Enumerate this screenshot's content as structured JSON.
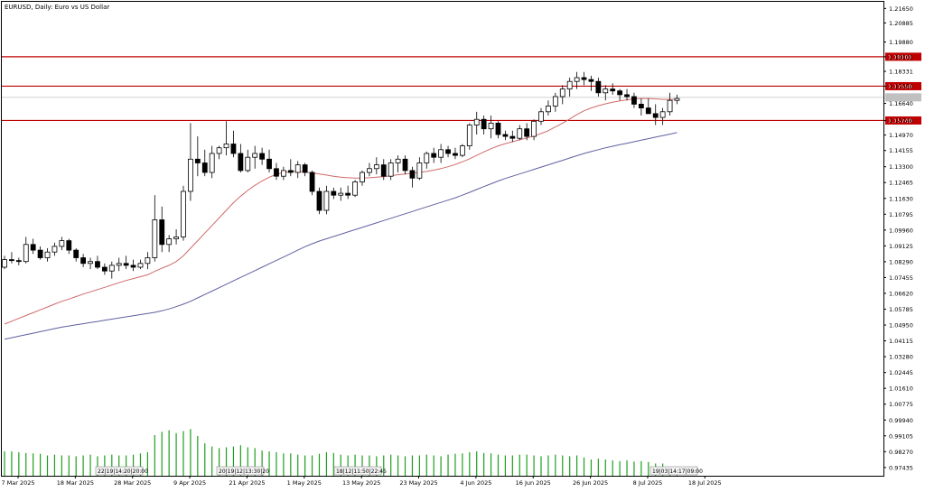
{
  "chart_data": {
    "type": "candlestick",
    "title": "EURUSD, Daily:  Euro vs US Dollar",
    "y_ticks": [
      "1.21650",
      "1.20885",
      "1.19880",
      "1.19101",
      "1.18331",
      "1.17550",
      "1.16640",
      "1.15740",
      "1.14970",
      "1.14155",
      "1.13300",
      "1.12465",
      "1.11630",
      "1.10795",
      "1.09960",
      "1.09125",
      "1.08290",
      "1.07455",
      "1.06620",
      "1.05785",
      "1.04950",
      "1.04115",
      "1.03280",
      "1.02445",
      "1.01610",
      "1.00775",
      "0.99940",
      "0.99105",
      "0.98270",
      "0.97435"
    ],
    "x_ticks": [
      "7 Mar 2025",
      "18 Mar 2025",
      "28 Mar 2025",
      "9 Apr 2025",
      "21 Apr 2025",
      "1 May 2025",
      "13 May 2025",
      "23 May 2025",
      "4 Jun 2025",
      "16 Jun 2025",
      "26 Jun 2025",
      "8 Jul 2025",
      "18 Jul 2025"
    ],
    "ylim": [
      0.97,
      1.22
    ],
    "horizontal_levels": [
      {
        "value": 1.19101,
        "label": "1.19101",
        "color": "#c00000"
      },
      {
        "value": 1.1755,
        "label": "1.17550",
        "color": "#c00000"
      },
      {
        "value": 1.1574,
        "label": "1.15740",
        "color": "#c00000"
      }
    ],
    "current_price": {
      "value": 1.1696,
      "color": "#c0c0c0"
    },
    "date_stamps": [
      "22|19|14:20|20:00",
      "20|19|12|13:30|20",
      "18|12|11:50|22:45",
      "19|03|14:17|09:00"
    ],
    "candles": [
      [
        1.08,
        1.086,
        1.079,
        1.084
      ],
      [
        1.084,
        1.088,
        1.082,
        1.0835
      ],
      [
        1.0835,
        1.085,
        1.081,
        1.083
      ],
      [
        1.083,
        1.096,
        1.082,
        1.092
      ],
      [
        1.092,
        1.095,
        1.087,
        1.089
      ],
      [
        1.089,
        1.091,
        1.084,
        1.085
      ],
      [
        1.085,
        1.09,
        1.083,
        1.088
      ],
      [
        1.088,
        1.093,
        1.086,
        1.091
      ],
      [
        1.091,
        1.096,
        1.089,
        1.094
      ],
      [
        1.094,
        1.095,
        1.087,
        1.089
      ],
      [
        1.089,
        1.09,
        1.083,
        1.085
      ],
      [
        1.085,
        1.087,
        1.08,
        1.082
      ],
      [
        1.082,
        1.085,
        1.079,
        1.083
      ],
      [
        1.083,
        1.086,
        1.079,
        1.08
      ],
      [
        1.08,
        1.082,
        1.076,
        1.078
      ],
      [
        1.078,
        1.083,
        1.074,
        1.081
      ],
      [
        1.081,
        1.085,
        1.078,
        1.082
      ],
      [
        1.082,
        1.086,
        1.079,
        1.081
      ],
      [
        1.081,
        1.084,
        1.078,
        1.08
      ],
      [
        1.08,
        1.084,
        1.079,
        1.082
      ],
      [
        1.082,
        1.088,
        1.079,
        1.085
      ],
      [
        1.085,
        1.118,
        1.083,
        1.105
      ],
      [
        1.105,
        1.112,
        1.088,
        1.092
      ],
      [
        1.092,
        1.097,
        1.088,
        1.095
      ],
      [
        1.095,
        1.1,
        1.092,
        1.096
      ],
      [
        1.096,
        1.123,
        1.094,
        1.12
      ],
      [
        1.12,
        1.156,
        1.115,
        1.137
      ],
      [
        1.137,
        1.149,
        1.128,
        1.135
      ],
      [
        1.135,
        1.142,
        1.128,
        1.13
      ],
      [
        1.13,
        1.144,
        1.127,
        1.14
      ],
      [
        1.14,
        1.144,
        1.137,
        1.143
      ],
      [
        1.143,
        1.157,
        1.139,
        1.145
      ],
      [
        1.145,
        1.152,
        1.138,
        1.14
      ],
      [
        1.14,
        1.145,
        1.13,
        1.131
      ],
      [
        1.131,
        1.142,
        1.13,
        1.138
      ],
      [
        1.138,
        1.144,
        1.132,
        1.14
      ],
      [
        1.14,
        1.143,
        1.134,
        1.137
      ],
      [
        1.137,
        1.142,
        1.13,
        1.132
      ],
      [
        1.132,
        1.135,
        1.126,
        1.128
      ],
      [
        1.128,
        1.133,
        1.126,
        1.131
      ],
      [
        1.131,
        1.137,
        1.128,
        1.13
      ],
      [
        1.13,
        1.136,
        1.127,
        1.134
      ],
      [
        1.134,
        1.135,
        1.128,
        1.13
      ],
      [
        1.13,
        1.131,
        1.118,
        1.12
      ],
      [
        1.12,
        1.122,
        1.108,
        1.11
      ],
      [
        1.11,
        1.123,
        1.108,
        1.12
      ],
      [
        1.12,
        1.122,
        1.116,
        1.118
      ],
      [
        1.118,
        1.122,
        1.115,
        1.119
      ],
      [
        1.119,
        1.123,
        1.116,
        1.118
      ],
      [
        1.118,
        1.126,
        1.117,
        1.125
      ],
      [
        1.125,
        1.131,
        1.123,
        1.13
      ],
      [
        1.13,
        1.135,
        1.128,
        1.132
      ],
      [
        1.132,
        1.138,
        1.129,
        1.134
      ],
      [
        1.134,
        1.137,
        1.126,
        1.128
      ],
      [
        1.128,
        1.137,
        1.126,
        1.135
      ],
      [
        1.135,
        1.139,
        1.13,
        1.137
      ],
      [
        1.137,
        1.139,
        1.129,
        1.131
      ],
      [
        1.131,
        1.133,
        1.122,
        1.127
      ],
      [
        1.127,
        1.138,
        1.126,
        1.135
      ],
      [
        1.135,
        1.141,
        1.132,
        1.14
      ],
      [
        1.14,
        1.143,
        1.135,
        1.138
      ],
      [
        1.138,
        1.145,
        1.135,
        1.142
      ],
      [
        1.142,
        1.144,
        1.138,
        1.14
      ],
      [
        1.14,
        1.143,
        1.137,
        1.139
      ],
      [
        1.139,
        1.145,
        1.138,
        1.144
      ],
      [
        1.144,
        1.156,
        1.142,
        1.155
      ],
      [
        1.155,
        1.162,
        1.15,
        1.158
      ],
      [
        1.158,
        1.16,
        1.15,
        1.153
      ],
      [
        1.153,
        1.16,
        1.148,
        1.156
      ],
      [
        1.156,
        1.157,
        1.148,
        1.15
      ],
      [
        1.15,
        1.152,
        1.147,
        1.149
      ],
      [
        1.149,
        1.152,
        1.146,
        1.148
      ],
      [
        1.148,
        1.155,
        1.147,
        1.153
      ],
      [
        1.153,
        1.156,
        1.147,
        1.149
      ],
      [
        1.149,
        1.158,
        1.147,
        1.157
      ],
      [
        1.157,
        1.164,
        1.155,
        1.162
      ],
      [
        1.162,
        1.168,
        1.16,
        1.165
      ],
      [
        1.165,
        1.172,
        1.162,
        1.17
      ],
      [
        1.17,
        1.176,
        1.166,
        1.174
      ],
      [
        1.174,
        1.18,
        1.17,
        1.178
      ],
      [
        1.178,
        1.183,
        1.174,
        1.18
      ],
      [
        1.18,
        1.183,
        1.176,
        1.179
      ],
      [
        1.179,
        1.181,
        1.173,
        1.178
      ],
      [
        1.178,
        1.18,
        1.17,
        1.172
      ],
      [
        1.172,
        1.176,
        1.168,
        1.174
      ],
      [
        1.174,
        1.177,
        1.171,
        1.173
      ],
      [
        1.173,
        1.174,
        1.168,
        1.171
      ],
      [
        1.171,
        1.174,
        1.168,
        1.17
      ],
      [
        1.17,
        1.172,
        1.164,
        1.166
      ],
      [
        1.166,
        1.169,
        1.16,
        1.164
      ],
      [
        1.164,
        1.169,
        1.161,
        1.161
      ],
      [
        1.161,
        1.166,
        1.155,
        1.159
      ],
      [
        1.159,
        1.164,
        1.155,
        1.162
      ],
      [
        1.162,
        1.172,
        1.16,
        1.168
      ],
      [
        1.168,
        1.171,
        1.166,
        1.169
      ]
    ],
    "volumes": [
      60,
      60,
      58,
      56,
      55,
      54,
      50,
      52,
      50,
      50,
      48,
      50,
      52,
      48,
      50,
      52,
      50,
      50,
      52,
      55,
      58,
      100,
      108,
      112,
      105,
      110,
      115,
      98,
      80,
      72,
      68,
      70,
      72,
      75,
      70,
      68,
      62,
      60,
      58,
      55,
      55,
      52,
      50,
      50,
      54,
      58,
      56,
      52,
      50,
      52,
      50,
      50,
      48,
      50,
      52,
      50,
      48,
      50,
      50,
      52,
      50,
      48,
      52,
      54,
      55,
      58,
      60,
      56,
      55,
      52,
      50,
      50,
      52,
      52,
      50,
      48,
      50,
      52,
      50,
      48,
      50,
      45,
      40,
      42,
      40,
      38,
      36,
      38,
      35,
      36,
      34,
      30,
      30,
      22,
      10
    ],
    "series": [
      {
        "color": "#d06a6a",
        "values": [
          1.05,
          1.0515,
          1.053,
          1.0545,
          1.056,
          1.0575,
          1.059,
          1.0605,
          1.062,
          1.0632,
          1.0645,
          1.0658,
          1.067,
          1.0682,
          1.0694,
          1.0706,
          1.0718,
          1.073,
          1.074,
          1.075,
          1.076,
          1.0778,
          1.0795,
          1.081,
          1.083,
          1.086,
          1.09,
          1.094,
          1.098,
          1.102,
          1.106,
          1.11,
          1.114,
          1.1175,
          1.1205,
          1.1232,
          1.1255,
          1.1275,
          1.129,
          1.13,
          1.1305,
          1.1305,
          1.1302,
          1.1298,
          1.1292,
          1.1286,
          1.128,
          1.1275,
          1.1272,
          1.127,
          1.127,
          1.1272,
          1.1275,
          1.1278,
          1.1282,
          1.1288,
          1.1292,
          1.1296,
          1.13,
          1.1305,
          1.1312,
          1.132,
          1.133,
          1.1342,
          1.1356,
          1.1372,
          1.139,
          1.1408,
          1.1425,
          1.144,
          1.1452,
          1.1462,
          1.1472,
          1.1482,
          1.1492,
          1.1505,
          1.152,
          1.154,
          1.156,
          1.1582,
          1.1605,
          1.1625,
          1.164,
          1.1652,
          1.1662,
          1.167,
          1.1677,
          1.1683,
          1.1688,
          1.169,
          1.169,
          1.1688,
          1.1685,
          1.1685,
          1.1686
        ]
      },
      {
        "color": "#6060a0",
        "values": [
          1.042,
          1.0428,
          1.0436,
          1.0444,
          1.0452,
          1.046,
          1.0468,
          1.0476,
          1.0484,
          1.049,
          1.0496,
          1.0502,
          1.0508,
          1.0514,
          1.052,
          1.0526,
          1.0532,
          1.0538,
          1.0544,
          1.055,
          1.0556,
          1.0562,
          1.057,
          1.058,
          1.0592,
          1.0605,
          1.062,
          1.0638,
          1.0656,
          1.0674,
          1.0692,
          1.071,
          1.0728,
          1.0746,
          1.0764,
          1.0782,
          1.08,
          1.0818,
          1.0836,
          1.0854,
          1.0872,
          1.089,
          1.0908,
          1.0924,
          1.0938,
          1.095,
          1.0962,
          1.0974,
          1.0986,
          1.0998,
          1.101,
          1.1022,
          1.1034,
          1.1046,
          1.1058,
          1.107,
          1.1082,
          1.1094,
          1.1106,
          1.1118,
          1.113,
          1.1142,
          1.1154,
          1.1166,
          1.118,
          1.1195,
          1.121,
          1.1225,
          1.124,
          1.1255,
          1.1268,
          1.128,
          1.1292,
          1.1304,
          1.1316,
          1.1328,
          1.134,
          1.1352,
          1.1364,
          1.1376,
          1.1388,
          1.14,
          1.141,
          1.142,
          1.143,
          1.1438,
          1.1446,
          1.1454,
          1.1462,
          1.147,
          1.1478,
          1.1486,
          1.1494,
          1.1502,
          1.151
        ]
      }
    ]
  }
}
